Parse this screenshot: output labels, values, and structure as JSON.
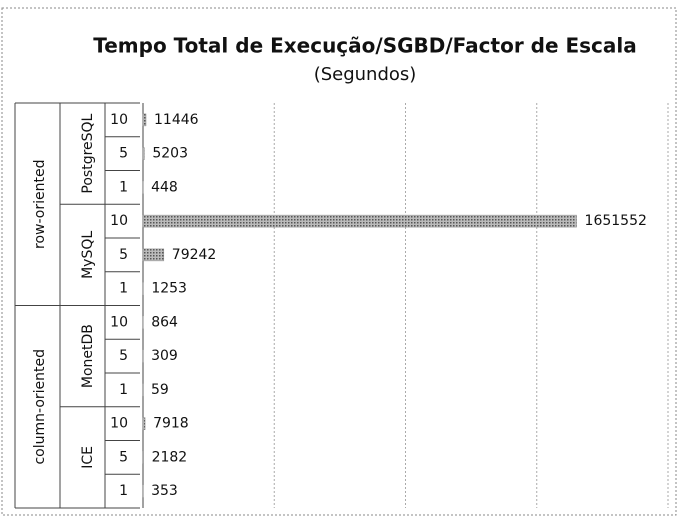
{
  "chart_data": {
    "type": "hbar-grouped",
    "title": "Tempo Total de Execução/SGBD/Factor de Escala",
    "subtitle": "(Segundos)",
    "color": "#8c8c8c",
    "xlim": [
      0,
      2000000
    ],
    "xticks": [
      0,
      500000,
      1000000,
      1500000,
      2000000
    ],
    "grid": true,
    "groups": [
      {
        "name": "row-oriented",
        "subgroups": [
          {
            "name": "PostgreSQL",
            "categories": [
              "10",
              "5",
              "1"
            ],
            "values": [
              11446,
              5203,
              448
            ]
          },
          {
            "name": "MySQL",
            "categories": [
              "10",
              "5",
              "1"
            ],
            "values": [
              1651552,
              79242,
              1253
            ]
          }
        ]
      },
      {
        "name": "column-oriented",
        "subgroups": [
          {
            "name": "MonetDB",
            "categories": [
              "10",
              "5",
              "1"
            ],
            "values": [
              864,
              309,
              59
            ]
          },
          {
            "name": "ICE",
            "categories": [
              "10",
              "5",
              "1"
            ],
            "values": [
              7918,
              2182,
              353
            ]
          }
        ]
      }
    ]
  }
}
